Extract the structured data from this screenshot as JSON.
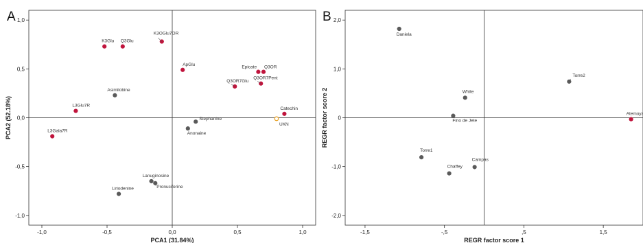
{
  "chart_data": [
    {
      "type": "scatter",
      "panel_label": "A",
      "xlabel": "PCA1 (31.84%)",
      "ylabel": "PCA2 (52.18%)",
      "xlim": [
        -1.1,
        1.1
      ],
      "ylim": [
        -1.1,
        1.1
      ],
      "x_ticks": [
        "-1,0",
        "-0,5",
        "0,0",
        "0,5",
        "1,0"
      ],
      "y_ticks": [
        "1,0",
        "0,5",
        "0,0",
        "-0,5",
        "-1,0"
      ],
      "grid": false,
      "reference_lines": "x=0, y=0",
      "colors": {
        "red": "#c0143c",
        "gray": "#5a5a5a",
        "orange": "#e8a020"
      },
      "points": [
        {
          "label": "K3Glu",
          "x": -0.52,
          "y": 0.73,
          "color": "red"
        },
        {
          "label": "Q3Glu",
          "x": -0.38,
          "y": 0.73,
          "color": "red"
        },
        {
          "label": "K3OGlu7OR",
          "x": -0.08,
          "y": 0.78,
          "color": "red"
        },
        {
          "label": "ApGlu",
          "x": 0.08,
          "y": 0.49,
          "color": "red"
        },
        {
          "label": "Epicate",
          "x": 0.66,
          "y": 0.47,
          "color": "red"
        },
        {
          "label": "Q3OR",
          "x": 0.7,
          "y": 0.47,
          "color": "red"
        },
        {
          "label": "Q3OR7Glu",
          "x": 0.48,
          "y": 0.32,
          "color": "red"
        },
        {
          "label": "Q3OR7Pent",
          "x": 0.68,
          "y": 0.35,
          "color": "red"
        },
        {
          "label": "Asimilobine",
          "x": -0.44,
          "y": 0.23,
          "color": "gray"
        },
        {
          "label": "L3Glu7R",
          "x": -0.74,
          "y": 0.07,
          "color": "red"
        },
        {
          "label": "Catechin",
          "x": 0.86,
          "y": 0.04,
          "color": "red"
        },
        {
          "label": "UKN",
          "x": 0.8,
          "y": -0.01,
          "color": "orange"
        },
        {
          "label": "Stephanine",
          "x": 0.18,
          "y": -0.04,
          "color": "gray"
        },
        {
          "label": "Anonaine",
          "x": 0.12,
          "y": -0.11,
          "color": "gray"
        },
        {
          "label": "L3Gala7R",
          "x": -0.92,
          "y": -0.19,
          "color": "red"
        },
        {
          "label": "Lanuginosine",
          "x": -0.16,
          "y": -0.65,
          "color": "gray"
        },
        {
          "label": "Pronuciferine",
          "x": -0.13,
          "y": -0.67,
          "color": "gray"
        },
        {
          "label": "Liriodenine",
          "x": -0.41,
          "y": -0.78,
          "color": "gray"
        }
      ]
    },
    {
      "type": "scatter",
      "panel_label": "B",
      "xlabel": "REGR factor score 1",
      "ylabel": "REGR factor score 2",
      "xlim": [
        -1.75,
        2.0
      ],
      "ylim": [
        -2.2,
        2.2
      ],
      "x_ticks": [
        "-1,5",
        "-,5",
        ",5",
        "1,5"
      ],
      "y_ticks": [
        "2,0",
        "1,0",
        "0",
        "-1,0",
        "-2,0"
      ],
      "grid": false,
      "reference_lines": "x=0, y=0",
      "colors": {
        "red": "#c0143c",
        "gray": "#5a5a5a"
      },
      "points": [
        {
          "label": "Daniela",
          "x": -1.07,
          "y": 1.82,
          "color": "gray"
        },
        {
          "label": "Torre2",
          "x": 1.07,
          "y": 0.74,
          "color": "gray"
        },
        {
          "label": "White",
          "x": -0.24,
          "y": 0.41,
          "color": "gray"
        },
        {
          "label": "Fino de Jete",
          "x": -0.39,
          "y": 0.04,
          "color": "gray"
        },
        {
          "label": "Atemoya",
          "x": 1.85,
          "y": -0.03,
          "color": "red"
        },
        {
          "label": "Torre1",
          "x": -0.79,
          "y": -0.81,
          "color": "gray"
        },
        {
          "label": "Campas",
          "x": -0.12,
          "y": -1.01,
          "color": "gray"
        },
        {
          "label": "Chaffey",
          "x": -0.44,
          "y": -1.14,
          "color": "gray"
        }
      ]
    }
  ]
}
